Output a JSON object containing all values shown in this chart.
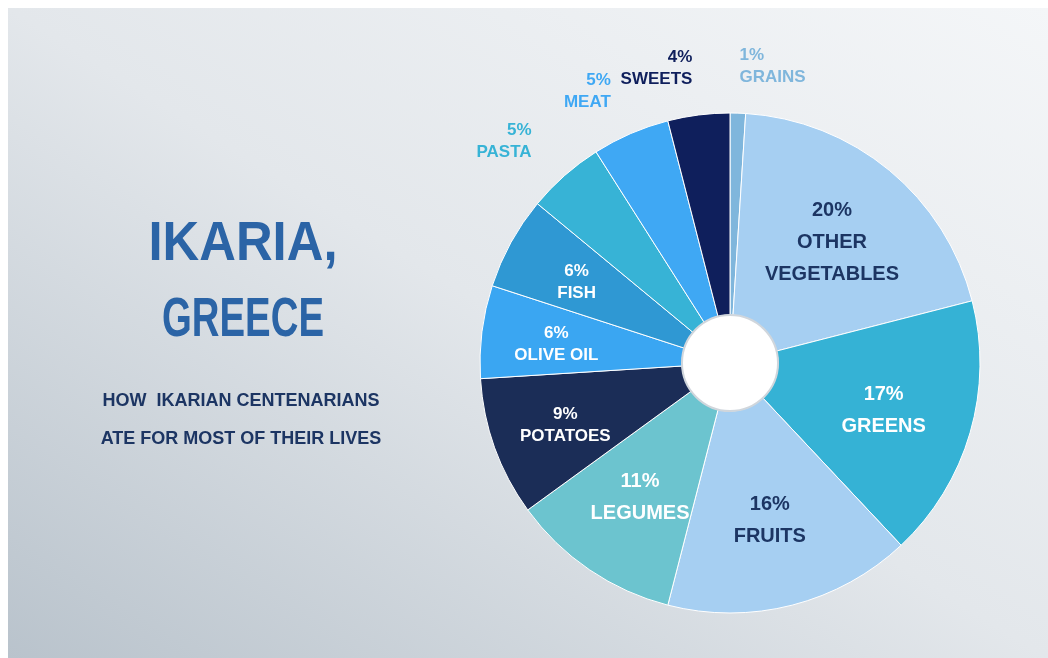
{
  "chart_data": {
    "type": "donut",
    "title": "IKARIA, GREECE",
    "subtitle": "HOW  IKARIAN CENTENARIANS ATE FOR MOST OF THEIR LIVES",
    "categories": [
      "GRAINS",
      "OTHER VEGETABLES",
      "GREENS",
      "FRUITS",
      "LEGUMES",
      "POTATOES",
      "OLIVE OIL",
      "FISH",
      "PASTA",
      "MEAT",
      "SWEETS"
    ],
    "values": [
      1,
      20,
      17,
      16,
      11,
      9,
      6,
      6,
      5,
      5,
      4
    ],
    "value_labels": [
      "1%",
      "20%",
      "17%",
      "16%",
      "11%",
      "9%",
      "6%",
      "6%",
      "5%",
      "5%",
      "4%"
    ],
    "colors": [
      "#7fb6dc",
      "#a6cff2",
      "#35b2d5",
      "#a6cff2",
      "#6cc4cf",
      "#1b2d57",
      "#3aa6f2",
      "#2f98d3",
      "#37b3d6",
      "#3fa8f4",
      "#0f1f5c"
    ]
  }
}
